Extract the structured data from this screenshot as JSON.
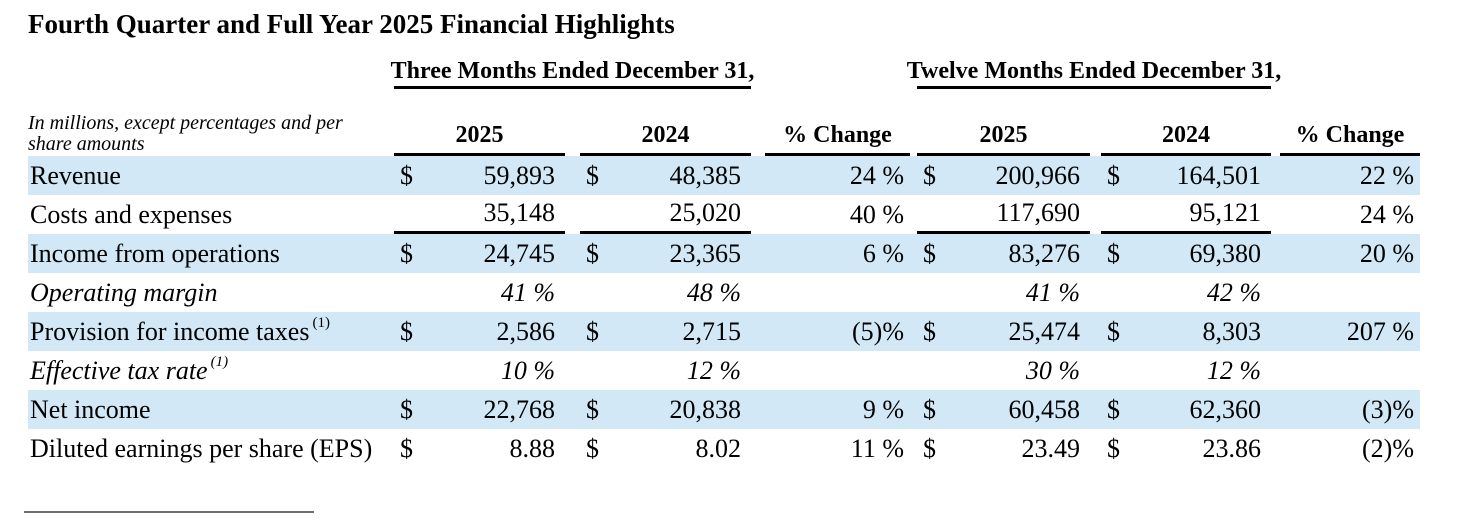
{
  "title": "Fourth Quarter and Full Year 2025 Financial Highlights",
  "table": {
    "units_note": "In millions, except percentages and per share amounts",
    "group_headers": [
      "Three Months Ended December 31,",
      "Twelve Months Ended December 31,"
    ],
    "column_headers": [
      "2025",
      "2024",
      "% Change",
      "2025",
      "2024",
      "% Change"
    ],
    "colors": {
      "row_highlight": "#d2e8f7",
      "text": "#000000",
      "rule": "#000000"
    },
    "rows": [
      {
        "label": "Revenue",
        "sup": "",
        "italic": false,
        "highlight": true,
        "subtotal_rule": false,
        "cells": [
          {
            "currency": "$",
            "value": "59,893"
          },
          {
            "currency": "$",
            "value": "48,385"
          },
          {
            "value": "24 %"
          },
          {
            "currency": "$",
            "value": "200,966"
          },
          {
            "currency": "$",
            "value": "164,501"
          },
          {
            "value": "22 %"
          }
        ]
      },
      {
        "label": "Costs and expenses",
        "sup": "",
        "italic": false,
        "highlight": false,
        "subtotal_rule": true,
        "cells": [
          {
            "currency": "",
            "value": "35,148"
          },
          {
            "currency": "",
            "value": "25,020"
          },
          {
            "value": "40 %"
          },
          {
            "currency": "",
            "value": "117,690"
          },
          {
            "currency": "",
            "value": "95,121"
          },
          {
            "value": "24 %"
          }
        ]
      },
      {
        "label": "Income from operations",
        "sup": "",
        "italic": false,
        "highlight": true,
        "subtotal_rule": false,
        "cells": [
          {
            "currency": "$",
            "value": "24,745"
          },
          {
            "currency": "$",
            "value": "23,365"
          },
          {
            "value": "6 %"
          },
          {
            "currency": "$",
            "value": "83,276"
          },
          {
            "currency": "$",
            "value": "69,380"
          },
          {
            "value": "20 %"
          }
        ]
      },
      {
        "label": "Operating margin",
        "sup": "",
        "italic": true,
        "highlight": false,
        "subtotal_rule": false,
        "cells": [
          {
            "currency": "",
            "value": "41 %"
          },
          {
            "currency": "",
            "value": "48 %"
          },
          {
            "value": ""
          },
          {
            "currency": "",
            "value": "41 %"
          },
          {
            "currency": "",
            "value": "42 %"
          },
          {
            "value": ""
          }
        ]
      },
      {
        "label": "Provision for income taxes",
        "sup": "(1)",
        "italic": false,
        "highlight": true,
        "subtotal_rule": false,
        "cells": [
          {
            "currency": "$",
            "value": "2,586"
          },
          {
            "currency": "$",
            "value": "2,715"
          },
          {
            "value": "(5)%"
          },
          {
            "currency": "$",
            "value": "25,474"
          },
          {
            "currency": "$",
            "value": "8,303"
          },
          {
            "value": "207 %"
          }
        ]
      },
      {
        "label": "Effective tax rate",
        "sup": "(1)",
        "italic": true,
        "highlight": false,
        "subtotal_rule": false,
        "cells": [
          {
            "currency": "",
            "value": "10 %"
          },
          {
            "currency": "",
            "value": "12 %"
          },
          {
            "value": ""
          },
          {
            "currency": "",
            "value": "30 %"
          },
          {
            "currency": "",
            "value": "12 %"
          },
          {
            "value": ""
          }
        ]
      },
      {
        "label": "Net income",
        "sup": "",
        "italic": false,
        "highlight": true,
        "subtotal_rule": false,
        "cells": [
          {
            "currency": "$",
            "value": "22,768"
          },
          {
            "currency": "$",
            "value": "20,838"
          },
          {
            "value": "9 %"
          },
          {
            "currency": "$",
            "value": "60,458"
          },
          {
            "currency": "$",
            "value": "62,360"
          },
          {
            "value": "(3)%"
          }
        ]
      },
      {
        "label": "Diluted earnings per share (EPS)",
        "sup": "",
        "italic": false,
        "highlight": false,
        "subtotal_rule": false,
        "cells": [
          {
            "currency": "$",
            "value": "8.88"
          },
          {
            "currency": "$",
            "value": "8.02"
          },
          {
            "value": "11 %"
          },
          {
            "currency": "$",
            "value": "23.49"
          },
          {
            "currency": "$",
            "value": "23.86"
          },
          {
            "value": "(2)%"
          }
        ]
      }
    ]
  }
}
